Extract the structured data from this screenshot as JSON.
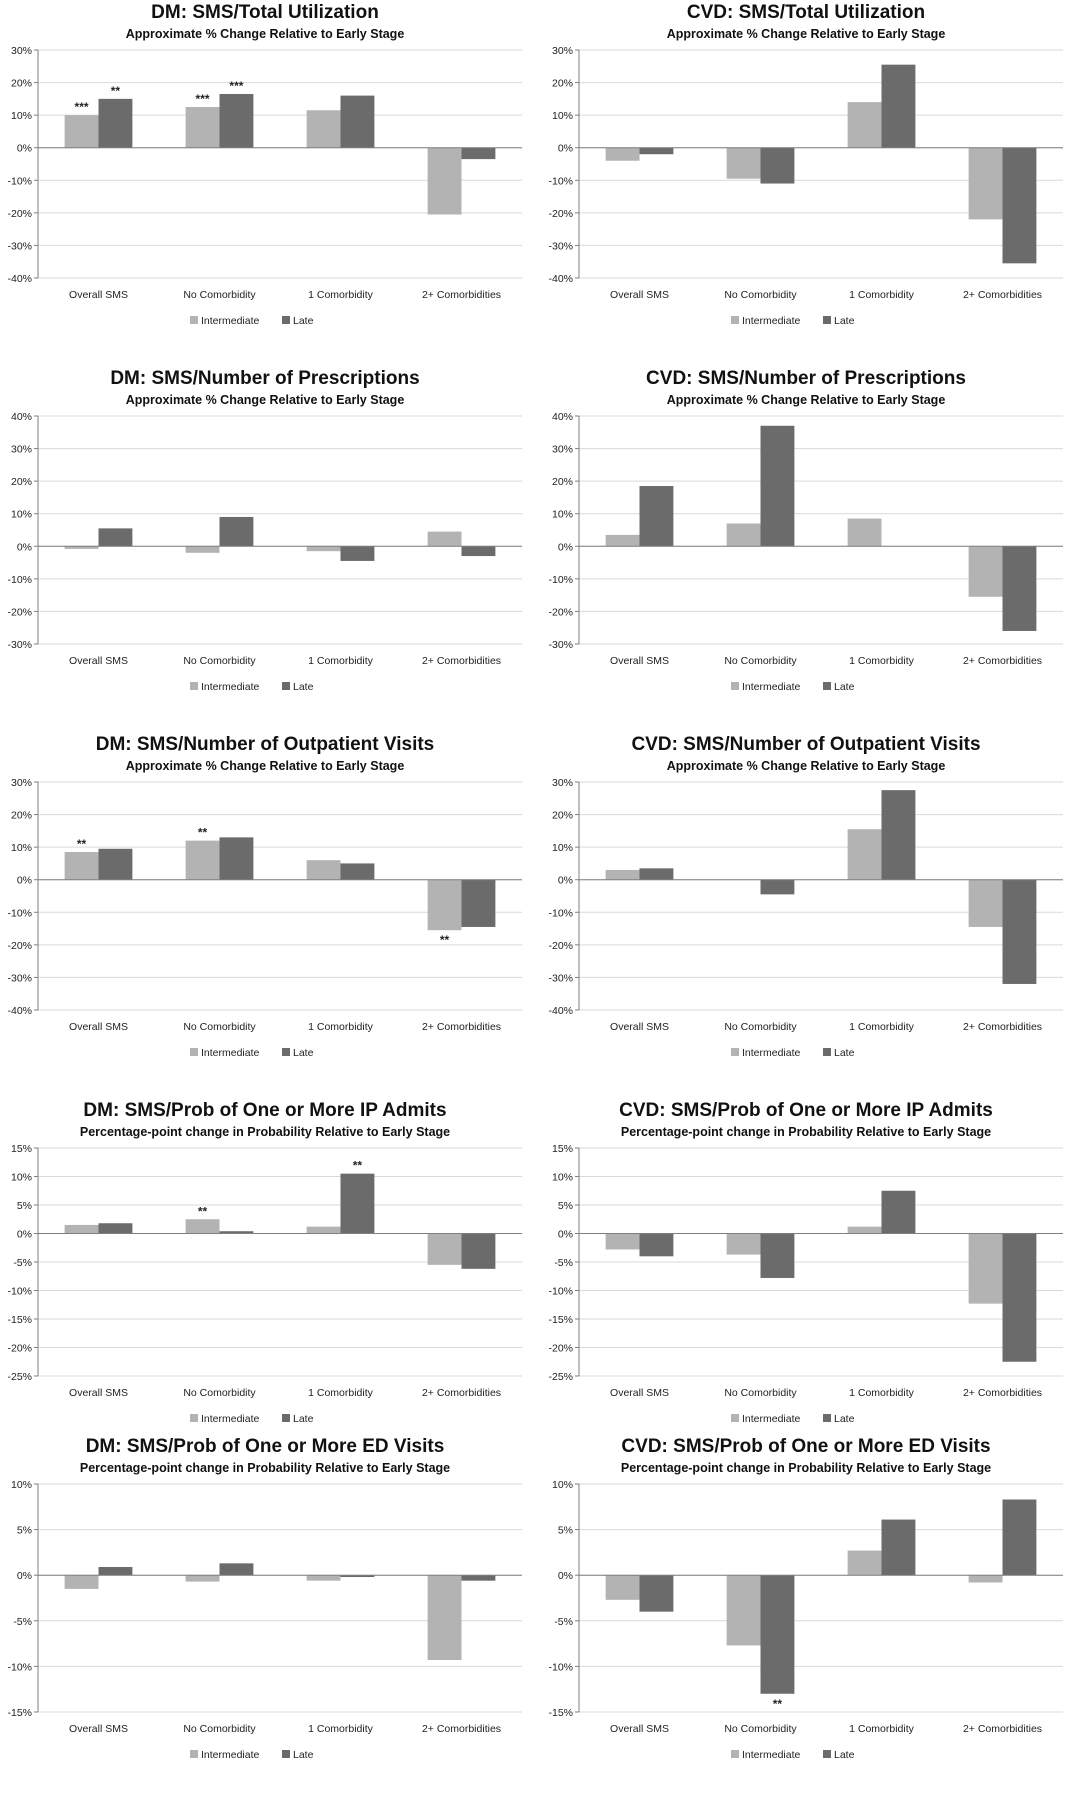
{
  "colors": {
    "intermediate": "#b3b3b3",
    "late": "#6b6b6b",
    "grid": "#d9d9d9",
    "axis": "#7f7f7f"
  },
  "chart_data": [
    {
      "type": "bar",
      "title": "DM: SMS/Total Utilization",
      "subtitle": "Approximate % Change Relative to Early Stage",
      "categories": [
        "Overall SMS",
        "No Comorbidity",
        "1 Comorbidity",
        "2+ Comorbidities"
      ],
      "series": [
        {
          "name": "Intermediate",
          "values": [
            10,
            12.5,
            11.5,
            -20.5
          ]
        },
        {
          "name": "Late",
          "values": [
            15,
            16.5,
            16,
            -3.5
          ]
        }
      ],
      "annotations": [
        {
          "category": "Overall SMS",
          "series": "Intermediate",
          "text": "***"
        },
        {
          "category": "Overall SMS",
          "series": "Late",
          "text": "**"
        },
        {
          "category": "No Comorbidity",
          "series": "Intermediate",
          "text": "***"
        },
        {
          "category": "No Comorbidity",
          "series": "Late",
          "text": "***"
        }
      ],
      "ylim": [
        -40,
        30
      ],
      "ystep": 10,
      "tick_format": "%",
      "grid": true,
      "legend": "bottom"
    },
    {
      "type": "bar",
      "title": "CVD: SMS/Total Utilization",
      "subtitle": "Approximate % Change Relative to Early Stage",
      "categories": [
        "Overall SMS",
        "No Comorbidity",
        "1 Comorbidity",
        "2+ Comorbidities"
      ],
      "series": [
        {
          "name": "Intermediate",
          "values": [
            -4,
            -9.5,
            14,
            -22
          ]
        },
        {
          "name": "Late",
          "values": [
            -2,
            -11,
            25.5,
            -35.5
          ]
        }
      ],
      "annotations": [],
      "ylim": [
        -40,
        30
      ],
      "ystep": 10,
      "tick_format": "%",
      "grid": true,
      "legend": "bottom"
    },
    {
      "type": "bar",
      "title": "DM: SMS/Number of Prescriptions",
      "subtitle": "Approximate % Change Relative to Early Stage",
      "categories": [
        "Overall SMS",
        "No Comorbidity",
        "1 Comorbidity",
        "2+ Comorbidities"
      ],
      "series": [
        {
          "name": "Intermediate",
          "values": [
            -0.8,
            -2,
            -1.5,
            4.5
          ]
        },
        {
          "name": "Late",
          "values": [
            5.5,
            9,
            -4.5,
            -3
          ]
        }
      ],
      "annotations": [],
      "ylim": [
        -30,
        40
      ],
      "ystep": 10,
      "tick_format": "%",
      "grid": true,
      "legend": "bottom"
    },
    {
      "type": "bar",
      "title": "CVD: SMS/Number of Prescriptions",
      "subtitle": "Approximate % Change Relative to Early Stage",
      "categories": [
        "Overall SMS",
        "No Comorbidity",
        "1 Comorbidity",
        "2+ Comorbidities"
      ],
      "series": [
        {
          "name": "Intermediate",
          "values": [
            3.5,
            7,
            8.5,
            -15.5
          ]
        },
        {
          "name": "Late",
          "values": [
            18.5,
            37,
            0,
            -26
          ]
        }
      ],
      "annotations": [],
      "ylim": [
        -30,
        40
      ],
      "ystep": 10,
      "tick_format": "%",
      "grid": true,
      "legend": "bottom"
    },
    {
      "type": "bar",
      "title": "DM: SMS/Number of Outpatient Visits",
      "subtitle": "Approximate % Change Relative to Early Stage",
      "categories": [
        "Overall SMS",
        "No Comorbidity",
        "1 Comorbidity",
        "2+ Comorbidities"
      ],
      "series": [
        {
          "name": "Intermediate",
          "values": [
            8.5,
            12,
            6,
            -15.5
          ]
        },
        {
          "name": "Late",
          "values": [
            9.5,
            13,
            5,
            -14.5
          ]
        }
      ],
      "annotations": [
        {
          "category": "Overall SMS",
          "series": "Intermediate",
          "text": "**"
        },
        {
          "category": "No Comorbidity",
          "series": "Intermediate",
          "text": "**"
        },
        {
          "category": "2+ Comorbidities",
          "series": "Intermediate",
          "text": "**"
        }
      ],
      "ylim": [
        -40,
        30
      ],
      "ystep": 10,
      "tick_format": "%",
      "grid": true,
      "legend": "bottom"
    },
    {
      "type": "bar",
      "title": "CVD: SMS/Number of Outpatient Visits",
      "subtitle": "Approximate % Change Relative to Early Stage",
      "categories": [
        "Overall SMS",
        "No Comorbidity",
        "1 Comorbidity",
        "2+ Comorbidities"
      ],
      "series": [
        {
          "name": "Intermediate",
          "values": [
            3,
            0,
            15.5,
            -14.5
          ]
        },
        {
          "name": "Late",
          "values": [
            3.5,
            -4.5,
            27.5,
            -32
          ]
        }
      ],
      "annotations": [],
      "ylim": [
        -40,
        30
      ],
      "ystep": 10,
      "tick_format": "%",
      "grid": true,
      "legend": "bottom"
    },
    {
      "type": "bar",
      "title": "DM: SMS/Prob of One or More IP Admits",
      "subtitle": "Percentage-point change in Probability Relative to Early Stage",
      "categories": [
        "Overall SMS",
        "No Comorbidity",
        "1 Comorbidity",
        "2+ Comorbidities"
      ],
      "series": [
        {
          "name": "Intermediate",
          "values": [
            1.5,
            2.5,
            1.2,
            -5.5
          ]
        },
        {
          "name": "Late",
          "values": [
            1.8,
            0.4,
            10.5,
            -6.2
          ]
        }
      ],
      "annotations": [
        {
          "category": "No Comorbidity",
          "series": "Intermediate",
          "text": "**"
        },
        {
          "category": "1 Comorbidity",
          "series": "Late",
          "text": "**"
        }
      ],
      "ylim": [
        -25,
        15
      ],
      "ystep": 5,
      "tick_format": "%",
      "grid": true,
      "legend": "bottom"
    },
    {
      "type": "bar",
      "title": "CVD: SMS/Prob of One or More IP Admits",
      "subtitle": "Percentage-point change in Probability Relative to Early Stage",
      "categories": [
        "Overall SMS",
        "No Comorbidity",
        "1 Comorbidity",
        "2+ Comorbidities"
      ],
      "series": [
        {
          "name": "Intermediate",
          "values": [
            -2.8,
            -3.7,
            1.2,
            -12.3
          ]
        },
        {
          "name": "Late",
          "values": [
            -4,
            -7.8,
            7.5,
            -22.5
          ]
        }
      ],
      "annotations": [],
      "ylim": [
        -25,
        15
      ],
      "ystep": 5,
      "tick_format": "%",
      "grid": true,
      "legend": "bottom"
    },
    {
      "type": "bar",
      "title": "DM: SMS/Prob of One or More ED Visits",
      "subtitle": "Percentage-point change in Probability Relative to Early Stage",
      "categories": [
        "Overall SMS",
        "No Comorbidity",
        "1 Comorbidity",
        "2+ Comorbidities"
      ],
      "series": [
        {
          "name": "Intermediate",
          "values": [
            -1.5,
            -0.7,
            -0.6,
            -9.3
          ]
        },
        {
          "name": "Late",
          "values": [
            0.9,
            1.3,
            -0.2,
            -0.6
          ]
        }
      ],
      "annotations": [],
      "ylim": [
        -15,
        10
      ],
      "ystep": 5,
      "tick_format": "%",
      "grid": true,
      "legend": "bottom"
    },
    {
      "type": "bar",
      "title": "CVD: SMS/Prob of One or More ED Visits",
      "subtitle": "Percentage-point change in Probability Relative to Early Stage",
      "categories": [
        "Overall SMS",
        "No Comorbidity",
        "1 Comorbidity",
        "2+ Comorbidities"
      ],
      "series": [
        {
          "name": "Intermediate",
          "values": [
            -2.7,
            -7.7,
            2.7,
            -0.8
          ]
        },
        {
          "name": "Late",
          "values": [
            -4,
            -13,
            6.1,
            8.3
          ]
        }
      ],
      "annotations": [
        {
          "category": "No Comorbidity",
          "series": "Late",
          "text": "**"
        }
      ],
      "ylim": [
        -15,
        10
      ],
      "ystep": 5,
      "tick_format": "%",
      "grid": true,
      "legend": "bottom"
    }
  ]
}
